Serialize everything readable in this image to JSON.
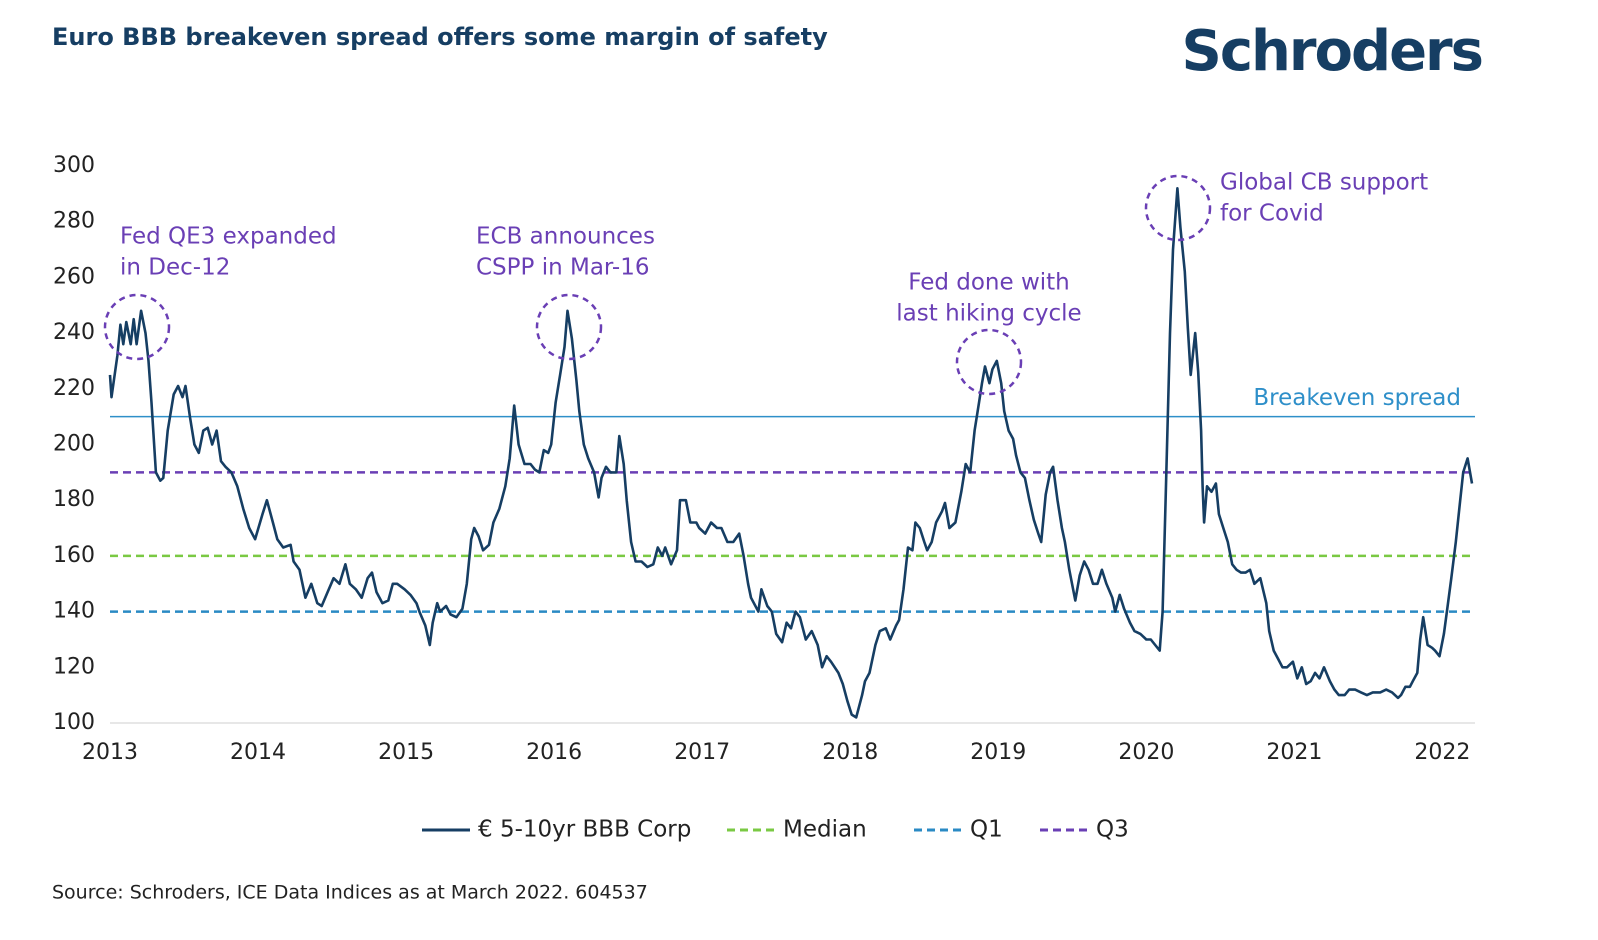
{
  "chart_data": {
    "type": "line",
    "title": "Euro BBB breakeven spread offers some margin of safety",
    "logo": "Schroders",
    "source": "Source: Schroders, ICE Data Indices as at March 2022. 604537",
    "xlim": [
      2013,
      2022.22
    ],
    "xticks": [
      2013,
      2014,
      2015,
      2016,
      2017,
      2018,
      2019,
      2020,
      2021,
      2022
    ],
    "ylim": [
      100,
      300
    ],
    "yticks": [
      100,
      120,
      140,
      160,
      180,
      200,
      220,
      240,
      260,
      280,
      300
    ],
    "grid": false,
    "x": [
      2013.0,
      2013.01,
      2013.05,
      2013.07,
      2013.09,
      2013.11,
      2013.14,
      2013.16,
      2013.18,
      2013.21,
      2013.24,
      2013.26,
      2013.28,
      2013.31,
      2013.34,
      2013.36,
      2013.39,
      2013.43,
      2013.46,
      2013.49,
      2013.51,
      2013.54,
      2013.57,
      2013.6,
      2013.63,
      2013.66,
      2013.69,
      2013.72,
      2013.75,
      2013.78,
      2013.82,
      2013.86,
      2013.9,
      2013.94,
      2013.98,
      2014.03,
      2014.06,
      2014.1,
      2014.13,
      2014.17,
      2014.22,
      2014.24,
      2014.28,
      2014.32,
      2014.36,
      2014.4,
      2014.43,
      2014.47,
      2014.51,
      2014.55,
      2014.59,
      2014.62,
      2014.66,
      2014.7,
      2014.74,
      2014.77,
      2014.8,
      2014.84,
      2014.88,
      2014.91,
      2014.94,
      2014.99,
      2015.03,
      2015.07,
      2015.09,
      2015.13,
      2015.16,
      2015.18,
      2015.21,
      2015.23,
      2015.27,
      2015.3,
      2015.34,
      2015.38,
      2015.41,
      2015.44,
      2015.46,
      2015.49,
      2015.52,
      2015.56,
      2015.59,
      2015.63,
      2015.67,
      2015.7,
      2015.73,
      2015.76,
      2015.8,
      2015.84,
      2015.87,
      2015.9,
      2015.93,
      2015.96,
      2015.98,
      2016.01,
      2016.04,
      2016.07,
      2016.09,
      2016.12,
      2016.15,
      2016.17,
      2016.2,
      2016.23,
      2016.27,
      2016.3,
      2016.32,
      2016.35,
      2016.38,
      2016.42,
      2016.44,
      2016.47,
      2016.49,
      2016.52,
      2016.55,
      2016.59,
      2016.63,
      2016.67,
      2016.7,
      2016.73,
      2016.75,
      2016.79,
      2016.83,
      2016.85,
      2016.89,
      2016.92,
      2016.96,
      2016.98,
      2017.02,
      2017.06,
      2017.1,
      2017.13,
      2017.17,
      2017.21,
      2017.25,
      2017.28,
      2017.31,
      2017.33,
      2017.38,
      2017.4,
      2017.44,
      2017.47,
      2017.5,
      2017.54,
      2017.57,
      2017.6,
      2017.63,
      2017.66,
      2017.7,
      2017.74,
      2017.78,
      2017.81,
      2017.84,
      2017.87,
      2017.92,
      2017.95,
      2017.98,
      2018.01,
      2018.04,
      2018.08,
      2018.1,
      2018.13,
      2018.17,
      2018.2,
      2018.24,
      2018.27,
      2018.31,
      2018.33,
      2018.36,
      2018.39,
      2018.42,
      2018.44,
      2018.47,
      2018.5,
      2018.52,
      2018.55,
      2018.58,
      2018.62,
      2018.64,
      2018.67,
      2018.71,
      2018.75,
      2018.78,
      2018.81,
      2018.84,
      2018.87,
      2018.89,
      2018.91,
      2018.94,
      2018.96,
      2018.99,
      2019.02,
      2019.04,
      2019.07,
      2019.1,
      2019.12,
      2019.15,
      2019.18,
      2019.21,
      2019.24,
      2019.27,
      2019.29,
      2019.32,
      2019.35,
      2019.37,
      2019.4,
      2019.43,
      2019.45,
      2019.48,
      2019.52,
      2019.55,
      2019.58,
      2019.61,
      2019.64,
      2019.67,
      2019.7,
      2019.73,
      2019.77,
      2019.79,
      2019.82,
      2019.85,
      2019.89,
      2019.92,
      2019.96,
      2020.0,
      2020.03,
      2020.06,
      2020.09,
      2020.11,
      2020.13,
      2020.16,
      2020.18,
      2020.21,
      2020.23,
      2020.26,
      2020.28,
      2020.3,
      2020.33,
      2020.35,
      2020.37,
      2020.38,
      2020.39,
      2020.41,
      2020.44,
      2020.47,
      2020.49,
      2020.52,
      2020.55,
      2020.58,
      2020.61,
      2020.64,
      2020.67,
      2020.7,
      2020.73,
      2020.77,
      2020.81,
      2020.83,
      2020.86,
      2020.89,
      2020.92,
      2020.95,
      2020.99,
      2021.02,
      2021.05,
      2021.08,
      2021.11,
      2021.14,
      2021.17,
      2021.2,
      2021.24,
      2021.27,
      2021.3,
      2021.34,
      2021.37,
      2021.41,
      2021.45,
      2021.49,
      2021.53,
      2021.58,
      2021.62,
      2021.66,
      2021.7,
      2021.72,
      2021.75,
      2021.78,
      2021.8,
      2021.83,
      2021.85,
      2021.87,
      2021.9,
      2021.93,
      2021.95,
      2021.98,
      2022.01,
      2022.03,
      2022.06,
      2022.09,
      2022.12,
      2022.14,
      2022.17,
      2022.2
    ],
    "series": [
      {
        "name": "€ 5-10yr BBB Corp",
        "color": "#163e63",
        "values": [
          225,
          217,
          232,
          243,
          236,
          244,
          236,
          245,
          236,
          248,
          240,
          230,
          215,
          190,
          187,
          188,
          205,
          218,
          221,
          217,
          221,
          210,
          200,
          197,
          205,
          206,
          200,
          205,
          194,
          192,
          190,
          185,
          177,
          170,
          166,
          175,
          180,
          172,
          166,
          163,
          164,
          158,
          155,
          145,
          150,
          143,
          142,
          147,
          152,
          150,
          157,
          150,
          148,
          145,
          152,
          154,
          147,
          143,
          144,
          150,
          150,
          148,
          146,
          143,
          140,
          135,
          128,
          136,
          143,
          140,
          142,
          139,
          138,
          141,
          150,
          166,
          170,
          167,
          162,
          164,
          172,
          177,
          185,
          195,
          214,
          200,
          193,
          193,
          191,
          190,
          198,
          197,
          200,
          215,
          225,
          235,
          248,
          238,
          223,
          212,
          200,
          195,
          190,
          181,
          188,
          192,
          190,
          190,
          203,
          193,
          180,
          165,
          158,
          158,
          156,
          157,
          163,
          160,
          163,
          157,
          162,
          180,
          180,
          172,
          172,
          170,
          168,
          172,
          170,
          170,
          165,
          165,
          168,
          160,
          150,
          145,
          140,
          148,
          142,
          140,
          132,
          129,
          136,
          134,
          140,
          138,
          130,
          133,
          128,
          120,
          124,
          122,
          118,
          114,
          108,
          103,
          102,
          110,
          115,
          118,
          128,
          133,
          134,
          130,
          135,
          137,
          148,
          163,
          162,
          172,
          170,
          165,
          162,
          165,
          172,
          176,
          179,
          170,
          172,
          183,
          193,
          190,
          205,
          215,
          222,
          228,
          222,
          227,
          230,
          222,
          212,
          205,
          202,
          196,
          190,
          188,
          180,
          173,
          168,
          165,
          182,
          190,
          192,
          180,
          170,
          165,
          155,
          144,
          153,
          158,
          155,
          150,
          150,
          155,
          150,
          145,
          140,
          146,
          141,
          136,
          133,
          132,
          130,
          130,
          128,
          126,
          140,
          180,
          240,
          270,
          292,
          278,
          262,
          242,
          225,
          240,
          226,
          205,
          185,
          172,
          185,
          183,
          186,
          175,
          170,
          165,
          157,
          155,
          154,
          154,
          155,
          150,
          152,
          143,
          133,
          126,
          123,
          120,
          120,
          122,
          116,
          120,
          114,
          115,
          118,
          116,
          120,
          115,
          112,
          110,
          110,
          112,
          112,
          111,
          110,
          111,
          111,
          112,
          111,
          109,
          110,
          113,
          113,
          115,
          118,
          130,
          138,
          128,
          127,
          126,
          124,
          132,
          140,
          152,
          165,
          180,
          190,
          195,
          186
        ]
      }
    ],
    "reference_line": {
      "label": "Breakeven spread",
      "value": 210,
      "color": "#2e8fc9"
    },
    "hlines": [
      {
        "name": "Median",
        "value": 160,
        "color": "#7ac943"
      },
      {
        "name": "Q1",
        "value": 140,
        "color": "#2a8ac4"
      },
      {
        "name": "Q3",
        "value": 190,
        "color": "#6a3fb5"
      }
    ],
    "annotations": [
      {
        "text": [
          "Fed QE3 expanded",
          "in Dec-12"
        ]
      },
      {
        "text": [
          "ECB announces",
          "CSPP in Mar-16"
        ]
      },
      {
        "text": [
          "Fed done with",
          "last hiking cycle"
        ]
      },
      {
        "text": [
          "Global CB support",
          "for Covid"
        ]
      }
    ],
    "annotation_color": "#6a3fb5"
  }
}
